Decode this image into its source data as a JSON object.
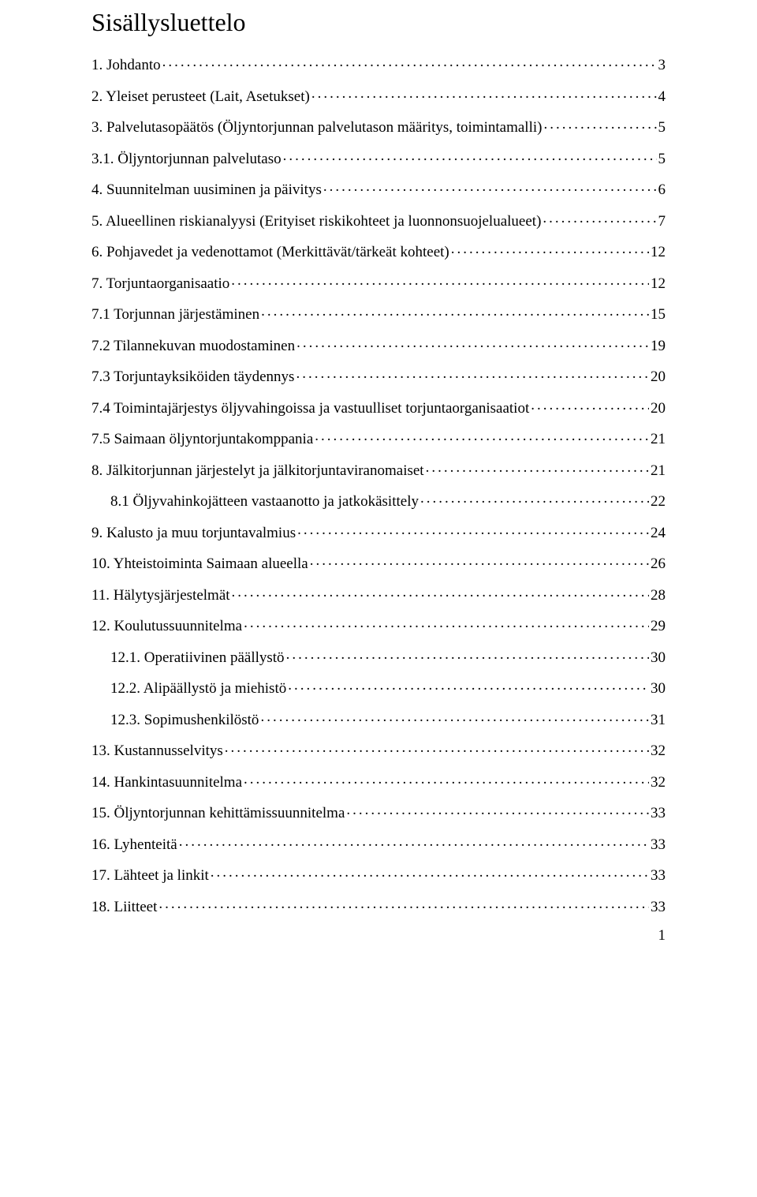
{
  "title": "Sisällysluettelo",
  "footer_page_number": "1",
  "toc": [
    {
      "label": "1. Johdanto",
      "page": "3",
      "indent": 0
    },
    {
      "label": "2. Yleiset perusteet (Lait, Asetukset)",
      "page": "4",
      "indent": 0
    },
    {
      "label": "3. Palvelutasopäätös (Öljyntorjunnan palvelutason määritys, toimintamalli)",
      "page": "5",
      "indent": 0
    },
    {
      "label": "3.1. Öljyntorjunnan palvelutaso",
      "page": "5",
      "indent": 0
    },
    {
      "label": "4. Suunnitelman uusiminen ja päivitys",
      "page": "6",
      "indent": 0
    },
    {
      "label": "5. Alueellinen riskianalyysi (Erityiset riskikohteet ja luonnonsuojelualueet)",
      "page": "7",
      "indent": 0
    },
    {
      "label": "6. Pohjavedet ja vedenottamot (Merkittävät/tärkeät kohteet)",
      "page": "12",
      "indent": 0
    },
    {
      "label": "7. Torjuntaorganisaatio",
      "page": "12",
      "indent": 0
    },
    {
      "label": "7.1 Torjunnan järjestäminen",
      "page": "15",
      "indent": 0
    },
    {
      "label": "7.2 Tilannekuvan muodostaminen",
      "page": "19",
      "indent": 0
    },
    {
      "label": "7.3 Torjuntayksiköiden täydennys",
      "page": "20",
      "indent": 0
    },
    {
      "label": "7.4 Toimintajärjestys öljyvahingoissa ja vastuulliset torjuntaorganisaatiot",
      "page": "20",
      "indent": 0
    },
    {
      "label": "7.5 Saimaan öljyntorjuntakomppania",
      "page": "21",
      "indent": 0
    },
    {
      "label": "8. Jälkitorjunnan järjestelyt ja jälkitorjuntaviranomaiset",
      "page": "21",
      "indent": 0
    },
    {
      "label": "8.1 Öljyvahinkojätteen vastaanotto ja jatkokäsittely",
      "page": "22",
      "indent": 1
    },
    {
      "label": "9. Kalusto ja muu torjuntavalmius",
      "page": "24",
      "indent": 0
    },
    {
      "label": "10. Yhteistoiminta Saimaan alueella",
      "page": "26",
      "indent": 0
    },
    {
      "label": "11. Hälytysjärjestelmät",
      "page": "28",
      "indent": 0
    },
    {
      "label": "12. Koulutussuunnitelma",
      "page": "29",
      "indent": 0
    },
    {
      "label": "12.1. Operatiivinen päällystö",
      "page": "30",
      "indent": 1
    },
    {
      "label": "12.2. Alipäällystö ja miehistö",
      "page": "30",
      "indent": 1
    },
    {
      "label": "12.3. Sopimushenkilöstö",
      "page": "31",
      "indent": 1
    },
    {
      "label": "13. Kustannusselvitys",
      "page": "32",
      "indent": 0
    },
    {
      "label": "14. Hankintasuunnitelma",
      "page": "32",
      "indent": 0
    },
    {
      "label": "15. Öljyntorjunnan kehittämissuunnitelma",
      "page": "33",
      "indent": 0
    },
    {
      "label": "16. Lyhenteitä",
      "page": "33",
      "indent": 0
    },
    {
      "label": "17. Lähteet ja linkit",
      "page": "33",
      "indent": 0
    },
    {
      "label": "18. Liitteet",
      "page": "33",
      "indent": 0
    }
  ]
}
